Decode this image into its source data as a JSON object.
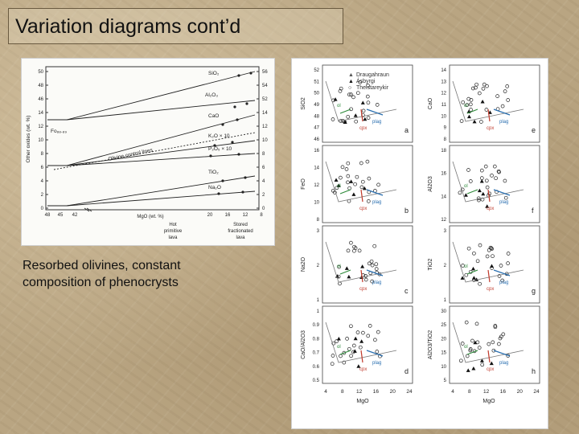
{
  "slide": {
    "title": "Variation diagrams cont’d",
    "caption_lines": [
      "Resorbed olivines, constant",
      "composition of phenocrysts"
    ]
  },
  "left_figure": {
    "y_axis_label": "Other oxides (wt. %)",
    "x_axis_label": "MgO (wt. %)",
    "left_y_ticks": [
      "50",
      "48",
      "46",
      "14",
      "12",
      "10",
      "8",
      "6",
      "4",
      "2",
      "0"
    ],
    "right_y_ticks": [
      "56",
      "54",
      "52",
      "14",
      "12",
      "10",
      "8",
      "6",
      "4",
      "2",
      "0"
    ],
    "x_ticks": [
      "48",
      "45",
      "42",
      "20",
      "16",
      "12",
      "8"
    ],
    "series_labels": [
      "SiO₂",
      "Al₂O₃",
      "CaO",
      "K₂O × 10",
      "P₂O₅ × 10",
      "TiO₂",
      "Na₂O",
      "Fo₈₈.₈₉",
      "Olivine control lines"
    ],
    "bottom_labels": {
      "left": [
        "Hot",
        "primitive",
        "lava"
      ],
      "right": [
        "Stored",
        "fractionated",
        "lava"
      ]
    }
  },
  "right_figure": {
    "legend": [
      "Draugahraun",
      "Ásbyrgi",
      "Theistareykir"
    ],
    "x_axis_label": "MgO",
    "x_ticks": [
      "4",
      "8",
      "12",
      "16",
      "20",
      "24"
    ],
    "panels": [
      {
        "letter": "a",
        "ylabel": "SiO2",
        "ticks": [
          "52",
          "51",
          "50",
          "49",
          "48",
          "47",
          "46"
        ]
      },
      {
        "letter": "b",
        "ylabel": "FeO",
        "ticks": [
          "16",
          "14",
          "12",
          "10",
          "8"
        ]
      },
      {
        "letter": "c",
        "ylabel": "Na2O",
        "ticks": [
          "3",
          "2",
          "1"
        ]
      },
      {
        "letter": "d",
        "ylabel": "CaO/Al2O3",
        "ticks": [
          "1",
          "0.9",
          "0.8",
          "0.7",
          "0.6",
          "0.5"
        ]
      },
      {
        "letter": "e",
        "ylabel": "CaO",
        "ticks": [
          "14",
          "13",
          "12",
          "11",
          "10",
          "9",
          "8"
        ]
      },
      {
        "letter": "f",
        "ylabel": "Al2O3",
        "ticks": [
          "18",
          "16",
          "14",
          "12"
        ]
      },
      {
        "letter": "g",
        "ylabel": "TiO2",
        "ticks": [
          "3",
          "2",
          "1"
        ]
      },
      {
        "letter": "h",
        "ylabel": "Al2O3/TiO2",
        "ticks": [
          "30",
          "25",
          "20",
          "15",
          "10",
          "5"
        ]
      }
    ],
    "vectors": [
      "ol",
      "cpx",
      "plag"
    ]
  }
}
